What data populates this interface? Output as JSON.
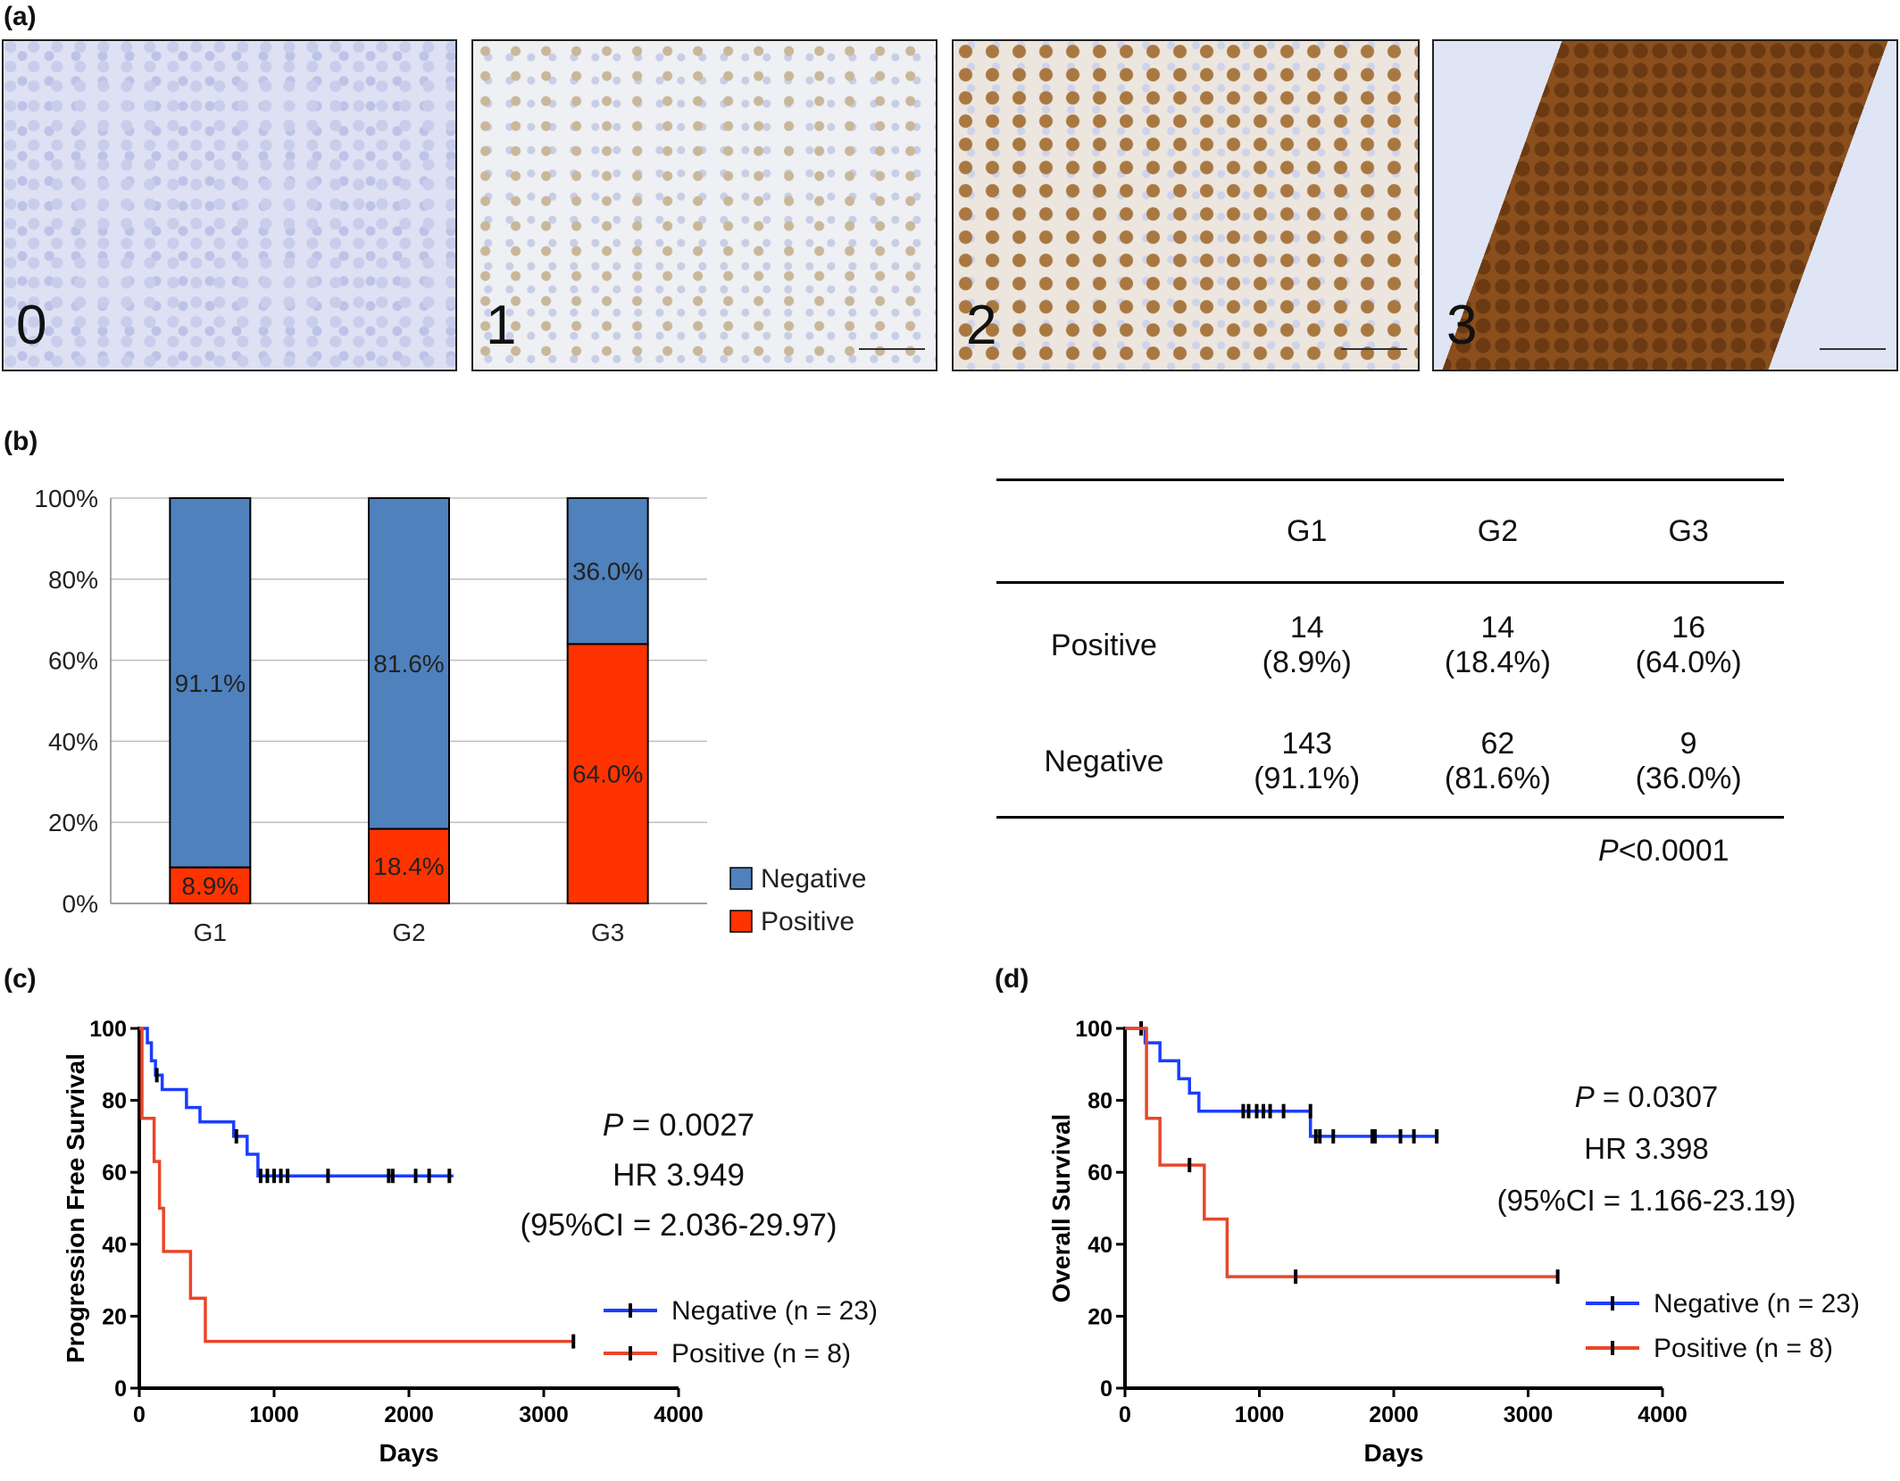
{
  "panels": {
    "a": {
      "label": "(a)",
      "images": [
        {
          "score": "0"
        },
        {
          "score": "1"
        },
        {
          "score": "2"
        },
        {
          "score": "3"
        }
      ]
    },
    "b": {
      "label": "(b)"
    },
    "c": {
      "label": "(c)"
    },
    "d": {
      "label": "(d)"
    }
  },
  "colors": {
    "negative_bar": "#4f81bd",
    "positive_bar": "#ff3300",
    "km_negative": "#1a3dff",
    "km_positive": "#e8472a"
  },
  "chart_data": [
    {
      "type": "bar",
      "stacked": true,
      "categories": [
        "G1",
        "G2",
        "G3"
      ],
      "series": [
        {
          "name": "Positive",
          "values": [
            8.9,
            18.4,
            64.0
          ],
          "labels": [
            "8.9%",
            "18.4%",
            "64.0%"
          ]
        },
        {
          "name": "Negative",
          "values": [
            91.1,
            81.6,
            36.0
          ],
          "labels": [
            "91.1%",
            "81.6%",
            "36.0%"
          ]
        }
      ],
      "yticks": [
        "0%",
        "20%",
        "40%",
        "60%",
        "80%",
        "100%"
      ],
      "ylim": [
        0,
        100
      ],
      "grid": true,
      "legend": [
        "Negative",
        "Positive"
      ],
      "legend_position": "bottom-right"
    },
    {
      "type": "table",
      "columns": [
        "",
        "G1",
        "G2",
        "G3"
      ],
      "rows": [
        {
          "label": "Positive",
          "cells": [
            [
              "14",
              "(8.9%)"
            ],
            [
              "14",
              "(18.4%)"
            ],
            [
              "16",
              "(64.0%)"
            ]
          ]
        },
        {
          "label": "Negative",
          "cells": [
            [
              "143",
              "(91.1%)"
            ],
            [
              "62",
              "(81.6%)"
            ],
            [
              "9",
              "(36.0%)"
            ]
          ]
        }
      ],
      "p_italic": "P",
      "p_rest": "<0.0001"
    },
    {
      "type": "line",
      "step": true,
      "xlabel": "Days",
      "ylabel": "Progression Free Survival",
      "xlim": [
        0,
        4000
      ],
      "ylim": [
        0,
        100
      ],
      "xticks": [
        0,
        1000,
        2000,
        3000,
        4000
      ],
      "yticks": [
        0,
        20,
        40,
        60,
        80,
        100
      ],
      "series": [
        {
          "name": "Negative",
          "n_label": "(n = 23)",
          "x": [
            0,
            60,
            90,
            120,
            170,
            250,
            350,
            450,
            550,
            700,
            800,
            880,
            2330
          ],
          "y": [
            100,
            96,
            91,
            87,
            83,
            83,
            78,
            74,
            74,
            70,
            65,
            59,
            59
          ],
          "censored": [
            [
              130,
              87
            ],
            [
              720,
              70
            ],
            [
              900,
              59
            ],
            [
              950,
              59
            ],
            [
              1000,
              59
            ],
            [
              1050,
              59
            ],
            [
              1100,
              59
            ],
            [
              1400,
              59
            ],
            [
              1850,
              59
            ],
            [
              1880,
              59
            ],
            [
              2050,
              59
            ],
            [
              2150,
              59
            ],
            [
              2300,
              59
            ]
          ]
        },
        {
          "name": "Positive",
          "n_label": "(n = 8)",
          "x": [
            0,
            20,
            110,
            150,
            180,
            380,
            490,
            3220
          ],
          "y": [
            100,
            75,
            63,
            50,
            38,
            25,
            13,
            13
          ],
          "censored": [
            [
              3220,
              13
            ]
          ]
        }
      ],
      "annotation": {
        "p_italic": "P",
        "p_rest": " = 0.0027",
        "hr": "HR 3.949",
        "ci": "(95%CI = 2.036-29.97)"
      }
    },
    {
      "type": "line",
      "step": true,
      "xlabel": "Days",
      "ylabel": "Overall Survival",
      "xlim": [
        0,
        4000
      ],
      "ylim": [
        0,
        100
      ],
      "xticks": [
        0,
        1000,
        2000,
        3000,
        4000
      ],
      "yticks": [
        0,
        20,
        40,
        60,
        80,
        100
      ],
      "series": [
        {
          "name": "Negative",
          "n_label": "(n = 23)",
          "x": [
            0,
            150,
            260,
            400,
            480,
            550,
            1380,
            2330
          ],
          "y": [
            100,
            96,
            91,
            86,
            82,
            77,
            70,
            70
          ],
          "censored": [
            [
              120,
              100
            ],
            [
              880,
              77
            ],
            [
              920,
              77
            ],
            [
              980,
              77
            ],
            [
              1030,
              77
            ],
            [
              1080,
              77
            ],
            [
              1180,
              77
            ],
            [
              1380,
              77
            ],
            [
              1420,
              70
            ],
            [
              1450,
              70
            ],
            [
              1550,
              70
            ],
            [
              1840,
              70
            ],
            [
              1860,
              70
            ],
            [
              2050,
              70
            ],
            [
              2150,
              70
            ],
            [
              2320,
              70
            ]
          ]
        },
        {
          "name": "Positive",
          "n_label": "(n = 8)",
          "x": [
            0,
            160,
            260,
            590,
            760,
            3220
          ],
          "y": [
            100,
            75,
            62,
            47,
            31,
            31
          ],
          "censored": [
            [
              480,
              62
            ],
            [
              1270,
              31
            ],
            [
              3220,
              31
            ]
          ]
        }
      ],
      "annotation": {
        "p_italic": "P",
        "p_rest": " = 0.0307",
        "hr": "HR 3.398",
        "ci": "(95%CI = 1.166-23.19)"
      }
    }
  ]
}
